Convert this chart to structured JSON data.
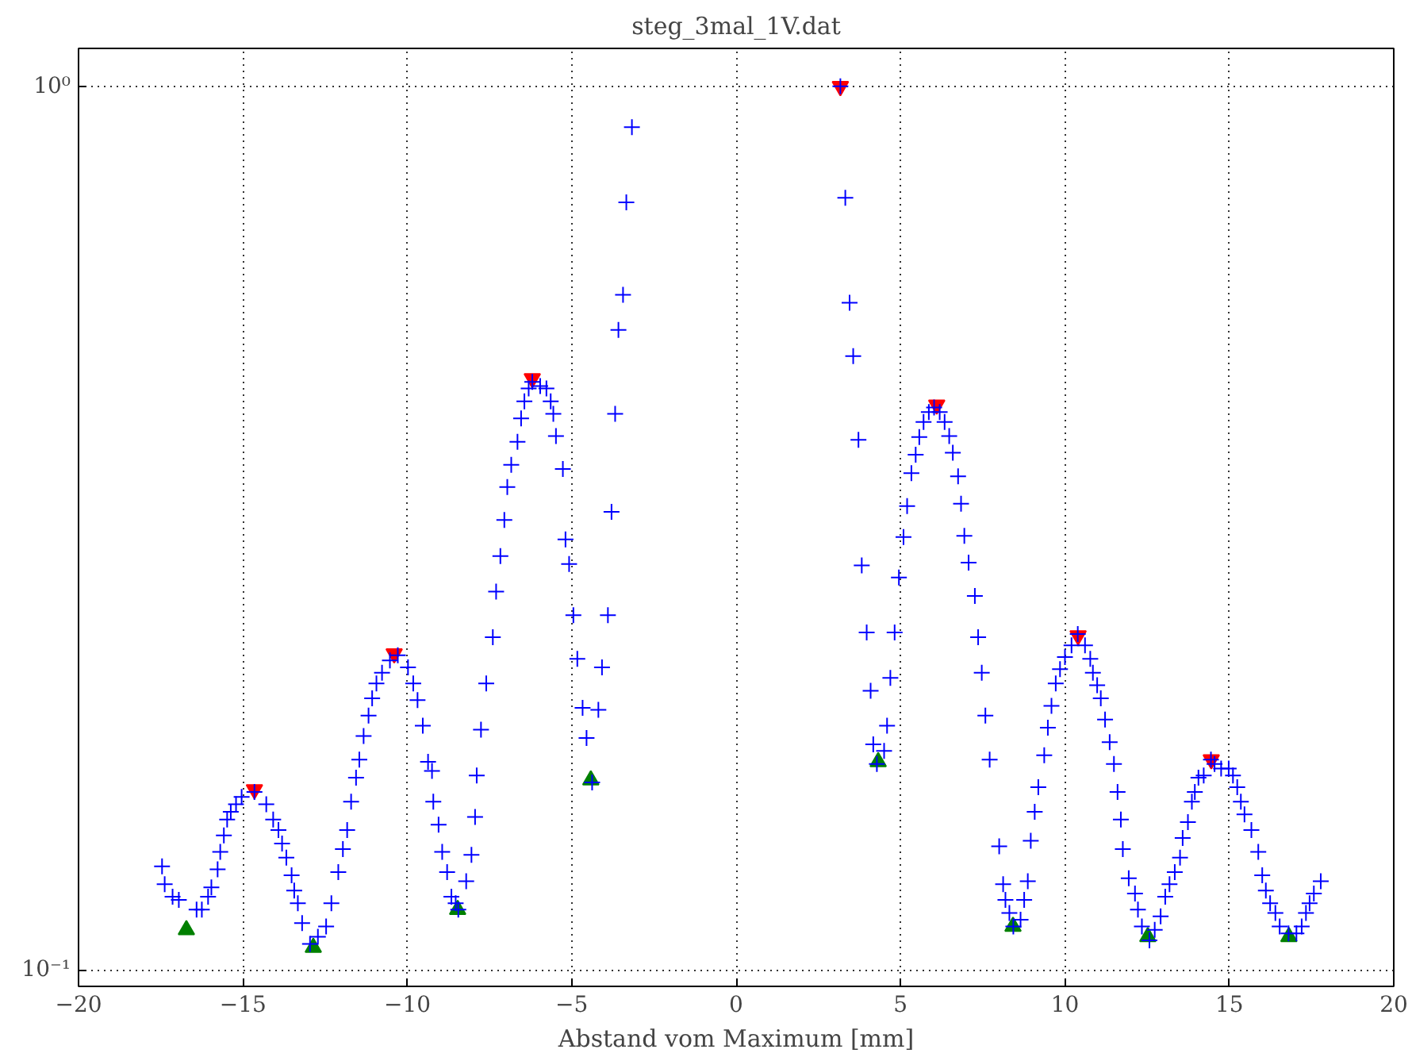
{
  "chart_data": {
    "type": "scatter",
    "title": "steg_3mal_1V.dat",
    "xlabel": "Abstand vom Maximum [mm]",
    "xlim": [
      -20,
      20
    ],
    "xticks": [
      -20,
      -15,
      -10,
      -5,
      0,
      5,
      10,
      15,
      20
    ],
    "ylim": [
      0.0958,
      1.104
    ],
    "yticks": [
      {
        "value": 0.1,
        "label": "10⁻¹"
      },
      {
        "value": 1,
        "label": "10⁰"
      }
    ],
    "log": "y",
    "grid": true,
    "series": [
      {
        "color": "#ff0000",
        "marker": "triangle_down",
        "x": [
          -14.65,
          -10.4,
          -6.2,
          3.17,
          6.1,
          10.4,
          14.45
        ],
        "values": [
          0.16,
          0.228,
          0.467,
          1.0,
          0.436,
          0.239,
          0.173
        ]
      },
      {
        "color": "#008000",
        "marker": "triangle",
        "x": [
          -16.72,
          -12.86,
          -8.47,
          -4.42,
          4.32,
          8.42,
          12.52,
          16.81
        ],
        "values": [
          0.111,
          0.106,
          0.117,
          0.164,
          0.172,
          0.112,
          0.109,
          0.109
        ]
      },
      {
        "color": "#0000ff",
        "marker": "cross",
        "x": [
          -17.46,
          -17.38,
          -17.14,
          -16.95,
          -16.41,
          -16.25,
          -16.06,
          -15.96,
          -15.77,
          -15.69,
          -15.58,
          -15.48,
          -15.37,
          -15.21,
          -15.04,
          -14.65,
          -14.29,
          -14.08,
          -13.92,
          -13.81,
          -13.68,
          -13.52,
          -13.44,
          -13.33,
          -13.2,
          -12.96,
          -12.72,
          -12.47,
          -12.31,
          -12.1,
          -11.96,
          -11.83,
          -11.71,
          -11.56,
          -11.46,
          -11.33,
          -11.18,
          -11.07,
          -10.94,
          -10.77,
          -10.53,
          -10.29,
          -9.98,
          -9.82,
          -9.69,
          -9.53,
          -9.37,
          -9.25,
          -9.21,
          -9.05,
          -8.94,
          -8.79,
          -8.66,
          -8.53,
          -8.45,
          -8.21,
          -8.05,
          -7.94,
          -7.89,
          -7.76,
          -7.6,
          -7.4,
          -7.3,
          -7.17,
          -7.05,
          -6.96,
          -6.84,
          -6.65,
          -6.54,
          -6.44,
          -6.31,
          -6.2,
          -5.96,
          -5.77,
          -5.64,
          -5.56,
          -5.48,
          -5.27,
          -5.19,
          -5.08,
          -4.95,
          -4.83,
          -4.67,
          -4.55,
          -4.38,
          -4.19,
          -4.08,
          -3.9,
          -3.79,
          -3.68,
          -3.58,
          -3.44,
          -3.34,
          -3.17,
          3.17,
          3.32,
          3.45,
          3.56,
          3.72,
          3.82,
          3.97,
          4.09,
          4.17,
          4.28,
          4.5,
          4.59,
          4.69,
          4.82,
          4.95,
          5.09,
          5.2,
          5.33,
          5.46,
          5.57,
          5.7,
          5.86,
          6.02,
          6.19,
          6.34,
          6.48,
          6.59,
          6.75,
          6.84,
          6.94,
          7.07,
          7.26,
          7.36,
          7.47,
          7.58,
          7.71,
          8.0,
          8.12,
          8.19,
          8.31,
          8.43,
          8.65,
          8.76,
          8.87,
          8.96,
          9.08,
          9.19,
          9.37,
          9.48,
          9.59,
          9.72,
          9.85,
          10.0,
          10.2,
          10.39,
          10.61,
          10.77,
          10.85,
          10.98,
          11.09,
          11.22,
          11.36,
          11.49,
          11.6,
          11.7,
          11.76,
          11.94,
          12.13,
          12.22,
          12.34,
          12.57,
          12.73,
          12.91,
          13.05,
          13.18,
          13.34,
          13.5,
          13.58,
          13.74,
          13.86,
          13.95,
          14.06,
          14.22,
          14.44,
          14.55,
          14.75,
          14.98,
          15.11,
          15.24,
          15.35,
          15.46,
          15.67,
          15.88,
          16.0,
          16.11,
          16.24,
          16.4,
          16.53,
          16.8,
          17.04,
          17.2,
          17.33,
          17.44,
          17.57,
          17.78
        ],
        "values": [
          0.131,
          0.125,
          0.121,
          0.12,
          0.117,
          0.117,
          0.121,
          0.124,
          0.13,
          0.136,
          0.142,
          0.148,
          0.151,
          0.154,
          0.157,
          0.159,
          0.154,
          0.148,
          0.144,
          0.139,
          0.134,
          0.128,
          0.123,
          0.119,
          0.113,
          0.107,
          0.109,
          0.112,
          0.119,
          0.129,
          0.137,
          0.144,
          0.155,
          0.165,
          0.173,
          0.184,
          0.194,
          0.203,
          0.211,
          0.217,
          0.224,
          0.227,
          0.22,
          0.211,
          0.202,
          0.189,
          0.172,
          0.168,
          0.155,
          0.146,
          0.136,
          0.129,
          0.121,
          0.119,
          0.117,
          0.126,
          0.135,
          0.149,
          0.166,
          0.187,
          0.211,
          0.238,
          0.268,
          0.294,
          0.323,
          0.352,
          0.373,
          0.396,
          0.421,
          0.44,
          0.455,
          0.463,
          0.458,
          0.455,
          0.44,
          0.426,
          0.402,
          0.369,
          0.307,
          0.288,
          0.252,
          0.225,
          0.198,
          0.183,
          0.163,
          0.197,
          0.22,
          0.252,
          0.33,
          0.426,
          0.53,
          0.581,
          0.739,
          0.899,
          1.0,
          0.748,
          0.569,
          0.495,
          0.398,
          0.287,
          0.241,
          0.207,
          0.18,
          0.171,
          0.177,
          0.189,
          0.214,
          0.241,
          0.278,
          0.309,
          0.335,
          0.365,
          0.383,
          0.401,
          0.417,
          0.428,
          0.433,
          0.428,
          0.417,
          0.402,
          0.385,
          0.362,
          0.337,
          0.31,
          0.289,
          0.265,
          0.238,
          0.217,
          0.194,
          0.173,
          0.138,
          0.125,
          0.12,
          0.116,
          0.112,
          0.114,
          0.12,
          0.126,
          0.14,
          0.151,
          0.161,
          0.175,
          0.188,
          0.199,
          0.211,
          0.219,
          0.226,
          0.233,
          0.24,
          0.233,
          0.225,
          0.217,
          0.21,
          0.203,
          0.192,
          0.181,
          0.171,
          0.159,
          0.148,
          0.137,
          0.127,
          0.122,
          0.117,
          0.112,
          0.108,
          0.111,
          0.115,
          0.121,
          0.125,
          0.129,
          0.134,
          0.141,
          0.147,
          0.155,
          0.159,
          0.165,
          0.166,
          0.173,
          0.171,
          0.169,
          0.169,
          0.166,
          0.161,
          0.155,
          0.15,
          0.144,
          0.136,
          0.128,
          0.123,
          0.119,
          0.116,
          0.112,
          0.11,
          0.11,
          0.112,
          0.116,
          0.119,
          0.122,
          0.126
        ]
      }
    ]
  }
}
